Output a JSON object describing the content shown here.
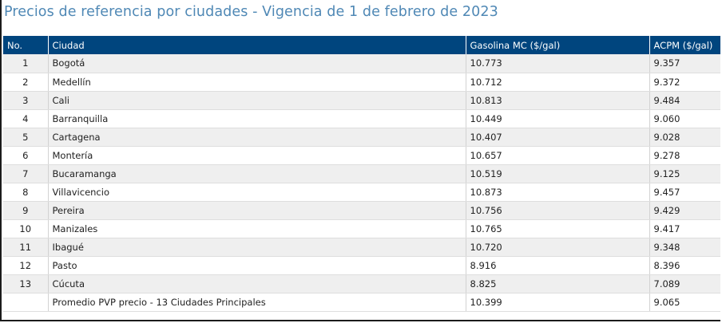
{
  "title": "Precios de referencia por ciudades - Vigencia de 1 de febrero de 2023",
  "table": {
    "headers": [
      "No.",
      "Ciudad",
      "Gasolina MC ($/gal)",
      "ACPM ($/gal)"
    ],
    "rows": [
      {
        "no": "1",
        "city": "Bogotá",
        "gasoline": "10.773",
        "acpm": "9.357"
      },
      {
        "no": "2",
        "city": "Medellín",
        "gasoline": "10.712",
        "acpm": "9.372"
      },
      {
        "no": "3",
        "city": "Cali",
        "gasoline": "10.813",
        "acpm": "9.484"
      },
      {
        "no": "4",
        "city": "Barranquilla",
        "gasoline": "10.449",
        "acpm": "9.060"
      },
      {
        "no": "5",
        "city": "Cartagena",
        "gasoline": "10.407",
        "acpm": "9.028"
      },
      {
        "no": "6",
        "city": "Montería",
        "gasoline": "10.657",
        "acpm": "9.278"
      },
      {
        "no": "7",
        "city": "Bucaramanga",
        "gasoline": "10.519",
        "acpm": "9.125"
      },
      {
        "no": "8",
        "city": "Villavicencio",
        "gasoline": "10.873",
        "acpm": "9.457"
      },
      {
        "no": "9",
        "city": "Pereira",
        "gasoline": "10.756",
        "acpm": "9.429"
      },
      {
        "no": "10",
        "city": "Manizales",
        "gasoline": "10.765",
        "acpm": "9.417"
      },
      {
        "no": "11",
        "city": "Ibagué",
        "gasoline": "10.720",
        "acpm": "9.348"
      },
      {
        "no": "12",
        "city": "Pasto",
        "gasoline": "8.916",
        "acpm": "8.396"
      },
      {
        "no": "13",
        "city": "Cúcuta",
        "gasoline": "8.825",
        "acpm": "7.089"
      },
      {
        "no": "",
        "city": "Promedio PVP precio - 13 Ciudades Principales",
        "gasoline": "10.399",
        "acpm": "9.065"
      }
    ]
  }
}
